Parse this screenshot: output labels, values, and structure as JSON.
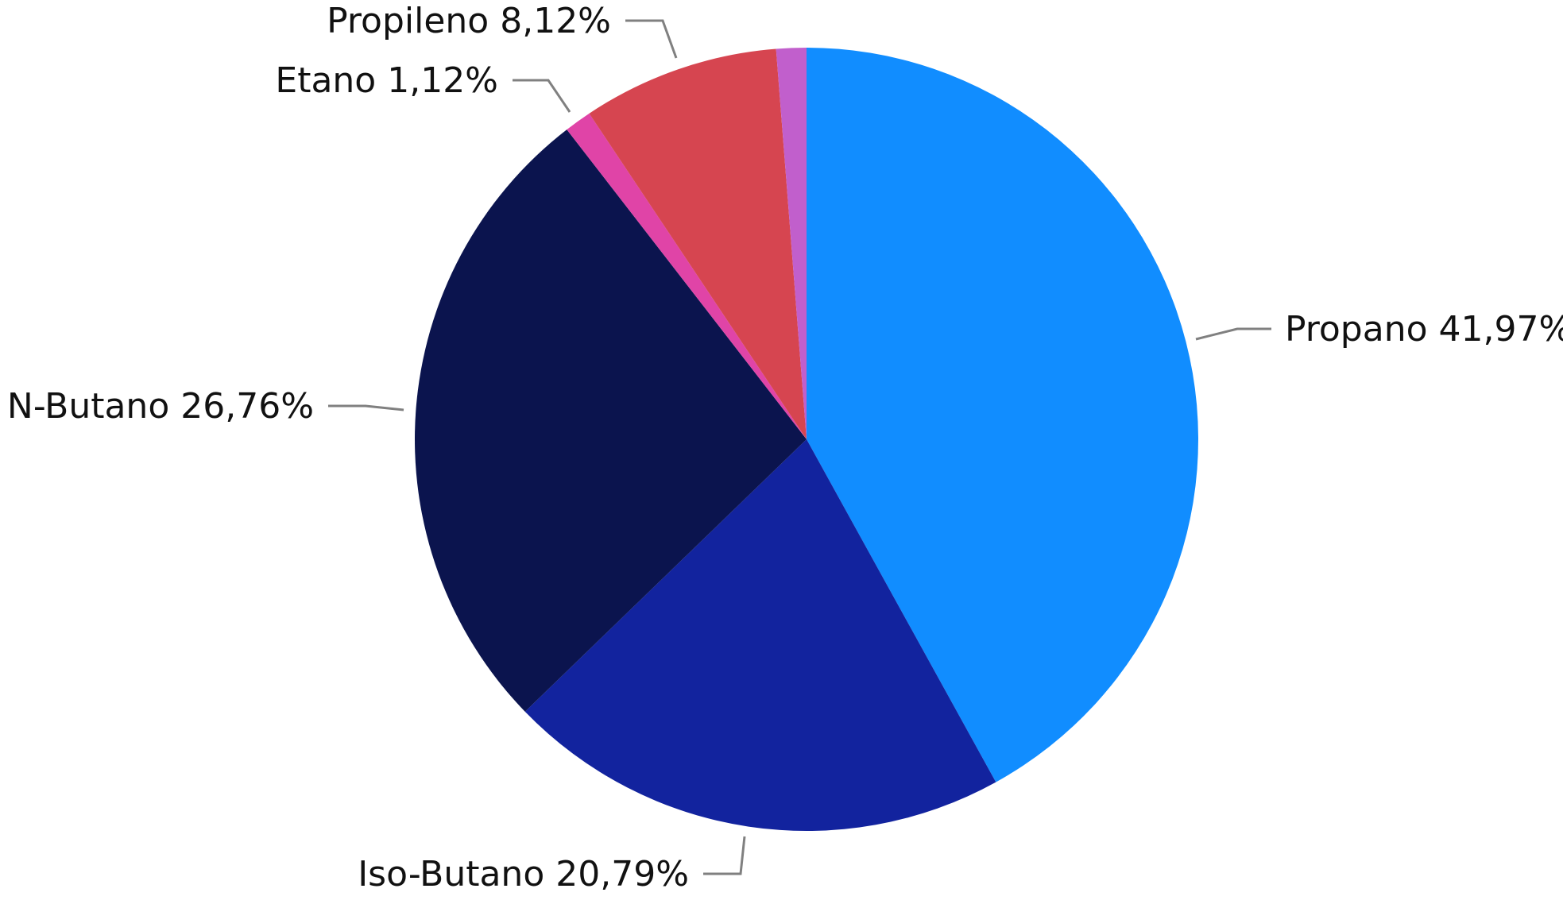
{
  "chart_data": {
    "type": "pie",
    "start_angle_deg": 0,
    "direction": "clockwise",
    "slices": [
      {
        "label": "Propano",
        "value": 41.97,
        "value_text": "41,97%",
        "color": "#118DFF"
      },
      {
        "label": "Iso-Butano",
        "value": 20.79,
        "value_text": "20,79%",
        "color": "#12239E"
      },
      {
        "label": "N-Butano",
        "value": 26.76,
        "value_text": "26,76%",
        "color": "#0B144E"
      },
      {
        "label": "Etano",
        "value": 1.12,
        "value_text": "1,12%",
        "color": "#E044A7"
      },
      {
        "label": "Propileno",
        "value": 8.12,
        "value_text": "8,12%",
        "color": "#D64550"
      },
      {
        "label": "",
        "value": 1.24,
        "value_text": "",
        "color": "#C15FCC"
      }
    ],
    "labels_shown": true,
    "legend": "none"
  }
}
